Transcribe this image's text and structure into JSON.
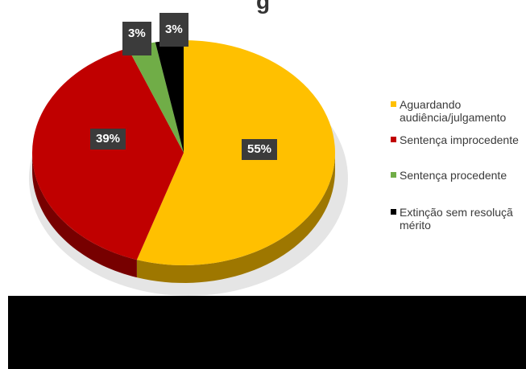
{
  "title_fragment": "g",
  "chart_data": {
    "type": "pie",
    "title": "",
    "categories": [
      "Aguardando audiência/julgamento",
      "Sentença improcedente",
      "Sentença procedente",
      "Extinção sem resolução mérito"
    ],
    "values": [
      55,
      39,
      3,
      3
    ],
    "unit": "%",
    "data_labels": [
      "55%",
      "39%",
      "3%",
      "3%"
    ],
    "colors": [
      "#ffc000",
      "#c00000",
      "#70ad47",
      "#000000"
    ],
    "legend_position": "right",
    "style": "3d-pie"
  },
  "legend": [
    {
      "label": "Aguardando\naudiência/julgamento",
      "color": "#ffc000"
    },
    {
      "label": "Sentença improcedente",
      "color": "#c00000"
    },
    {
      "label": "Sentença procedente",
      "color": "#70ad47"
    },
    {
      "label": "Extinção sem resoluçã\nmérito",
      "color": "#000000"
    }
  ]
}
